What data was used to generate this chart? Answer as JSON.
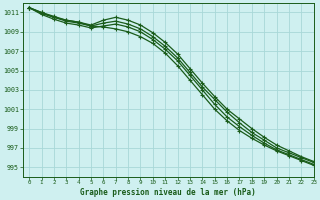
{
  "title": "Graphe pression niveau de la mer (hPa)",
  "background_color": "#cff0f0",
  "grid_color": "#a8d8d8",
  "line_color": "#1a5c1a",
  "xlim": [
    -0.5,
    23
  ],
  "ylim": [
    994.0,
    1012.0
  ],
  "yticks": [
    995,
    997,
    999,
    1001,
    1003,
    1005,
    1007,
    1009,
    1011
  ],
  "xticks": [
    0,
    1,
    2,
    3,
    4,
    5,
    6,
    7,
    8,
    9,
    10,
    11,
    12,
    13,
    14,
    15,
    16,
    17,
    18,
    19,
    20,
    21,
    22,
    23
  ],
  "series": [
    [
      1011.5,
      1011.0,
      1010.5,
      1010.2,
      1010.0,
      1009.6,
      1009.5,
      1009.3,
      1009.0,
      1008.5,
      1007.8,
      1006.8,
      1005.5,
      1004.0,
      1002.5,
      1001.0,
      999.8,
      998.8,
      998.0,
      997.3,
      996.7,
      996.2,
      995.7,
      995.2
    ],
    [
      1011.5,
      1010.8,
      1010.3,
      1009.9,
      1009.7,
      1009.4,
      1009.6,
      1009.8,
      1009.5,
      1009.0,
      1008.2,
      1007.2,
      1006.0,
      1004.5,
      1003.0,
      1001.5,
      1000.2,
      999.2,
      998.3,
      997.5,
      996.8,
      996.3,
      995.8,
      995.3
    ],
    [
      1011.5,
      1010.9,
      1010.5,
      1010.1,
      1009.9,
      1009.6,
      1009.9,
      1010.1,
      1009.8,
      1009.3,
      1008.5,
      1007.5,
      1006.3,
      1004.8,
      1003.3,
      1002.0,
      1000.7,
      999.6,
      998.6,
      997.8,
      997.0,
      996.5,
      996.0,
      995.5
    ],
    [
      1011.5,
      1011.0,
      1010.6,
      1010.2,
      1010.0,
      1009.7,
      1010.2,
      1010.5,
      1010.2,
      1009.7,
      1008.9,
      1007.9,
      1006.7,
      1005.2,
      1003.7,
      1002.3,
      1001.0,
      1000.0,
      999.0,
      998.1,
      997.3,
      996.7,
      996.1,
      995.6
    ]
  ]
}
